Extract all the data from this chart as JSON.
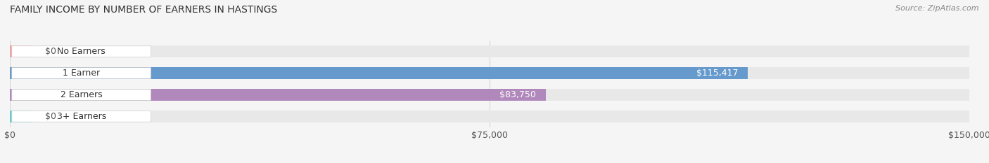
{
  "title": "FAMILY INCOME BY NUMBER OF EARNERS IN HASTINGS",
  "source": "Source: ZipAtlas.com",
  "categories": [
    "No Earners",
    "1 Earner",
    "2 Earners",
    "3+ Earners"
  ],
  "values": [
    0,
    115417,
    83750,
    0
  ],
  "bar_colors": [
    "#f4a0a0",
    "#6699cc",
    "#b088bb",
    "#66cccc"
  ],
  "value_labels": [
    "$0",
    "$115,417",
    "$83,750",
    "$0"
  ],
  "xlim": [
    0,
    150000
  ],
  "xticks": [
    0,
    75000,
    150000
  ],
  "xtick_labels": [
    "$0",
    "$75,000",
    "$150,000"
  ],
  "bar_height": 0.55,
  "bg_bar_color": "#e8e8e8",
  "title_fontsize": 10,
  "source_fontsize": 8,
  "label_fontsize": 9,
  "value_fontsize": 9,
  "tick_fontsize": 9
}
